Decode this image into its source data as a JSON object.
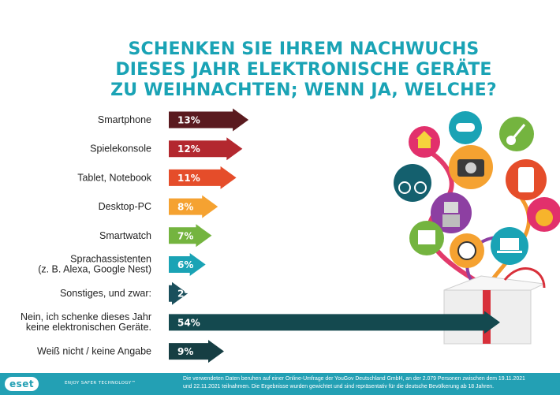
{
  "title_lines": [
    "SCHENKEN SIE IHREM NACHWUCHS",
    "DIESES JAHR ELEKTRONISCHE GERÄTE",
    "ZU WEIHNACHTEN; WENN JA, WELCHE?"
  ],
  "chart_data": {
    "type": "bar",
    "orientation": "horizontal",
    "unit": "%",
    "categories": [
      [
        "Smartphone"
      ],
      [
        "Spielekonsole"
      ],
      [
        "Tablet, Notebook"
      ],
      [
        "Desktop-PC"
      ],
      [
        "Smartwatch"
      ],
      [
        "Sprachassistenten",
        "(z. B. Alexa, Google Nest)"
      ],
      [
        "Sonstiges, und zwar:"
      ],
      [
        "Nein, ich schenke dieses Jahr",
        "keine elektronischen Geräte."
      ],
      [
        "Weiß nicht / keine Angabe"
      ]
    ],
    "values": [
      13,
      12,
      11,
      8,
      7,
      6,
      2,
      54,
      9
    ],
    "value_labels": [
      "13%",
      "12%",
      "11%",
      "8%",
      "7%",
      "6%",
      "2%",
      "54%",
      "9%"
    ],
    "colors": [
      "#5a1a1f",
      "#b3282f",
      "#e54d2a",
      "#f5a231",
      "#74b43f",
      "#1aa3b5",
      "#1a4f5c",
      "#14494f",
      "#163e43"
    ],
    "xlim": [
      0,
      54
    ]
  },
  "footer": {
    "logo": "eset",
    "tagline": "ENJOY SAFER TECHNOLOGY™",
    "source_lines": [
      "Die verwendeten Daten beruhen auf einer Online-Umfrage der YouGov Deutschland GmbH, an der 2.079 Personen zwischen dem 19.11.2021",
      "und 22.11.2021 teilnahmen. Die Ergebnisse wurden gewichtet und sind repräsentativ für die deutsche Bevölkerung ab 18 Jahren."
    ]
  }
}
